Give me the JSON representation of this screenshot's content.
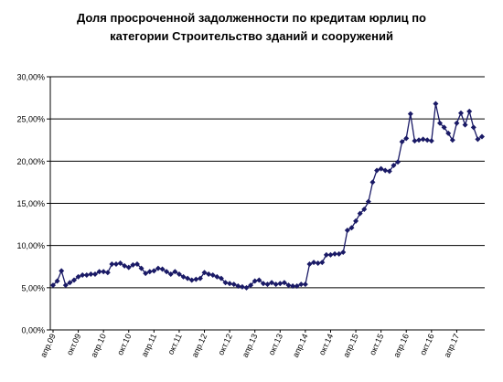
{
  "chart_data": {
    "type": "line",
    "title_lines": [
      "Доля просроченной задолженности по кредитам юрлиц по",
      "категории Строительство зданий и сооружений"
    ],
    "xlabel": "",
    "ylabel": "",
    "ylim": [
      0,
      30
    ],
    "yticks": [
      0,
      5,
      10,
      15,
      20,
      25,
      30
    ],
    "ytick_labels": [
      "0,00%",
      "5,00%",
      "10,00%",
      "15,00%",
      "20,00%",
      "25,00%",
      "30,00%"
    ],
    "xtick_labels": [
      "апр.09",
      "окт.09",
      "апр.10",
      "окт.10",
      "апр.11",
      "окт.11",
      "апр.12",
      "окт.12",
      "апр.13",
      "окт.13",
      "апр.14",
      "окт.14",
      "апр.15",
      "окт.15",
      "апр.16",
      "окт.16",
      "апр.17"
    ],
    "xtick_month_index": [
      0,
      6,
      12,
      18,
      24,
      30,
      36,
      42,
      48,
      54,
      60,
      66,
      72,
      78,
      84,
      90,
      96
    ],
    "x_start": "апр.09",
    "grid": true,
    "legend": "none",
    "series_color": "#1a1a66",
    "series": [
      {
        "values": [
          5.3,
          5.8,
          7.0,
          5.3,
          5.6,
          5.9,
          6.3,
          6.5,
          6.5,
          6.6,
          6.6,
          6.9,
          6.9,
          6.8,
          7.8,
          7.8,
          7.9,
          7.6,
          7.4,
          7.7,
          7.8,
          7.3,
          6.7,
          6.9,
          7.0,
          7.3,
          7.2,
          6.9,
          6.6,
          6.9,
          6.6,
          6.3,
          6.1,
          5.9,
          6.0,
          6.1,
          6.8,
          6.6,
          6.5,
          6.3,
          6.1,
          5.6,
          5.5,
          5.4,
          5.2,
          5.1,
          5.0,
          5.3,
          5.8,
          5.9,
          5.5,
          5.4,
          5.6,
          5.4,
          5.5,
          5.6,
          5.3,
          5.2,
          5.2,
          5.4,
          5.4,
          7.8,
          8.0,
          7.9,
          8.0,
          8.9,
          8.9,
          9.0,
          9.0,
          9.2,
          11.8,
          12.1,
          12.9,
          13.8,
          14.3,
          15.2,
          17.5,
          18.9,
          19.1,
          18.9,
          18.8,
          19.5,
          19.9,
          22.3,
          22.7,
          25.6,
          22.4,
          22.5,
          22.6,
          22.5,
          22.4,
          26.8,
          24.5,
          24.0,
          23.3,
          22.5,
          24.5,
          25.7,
          24.3,
          25.9,
          24.0,
          22.6,
          22.9
        ]
      }
    ]
  }
}
